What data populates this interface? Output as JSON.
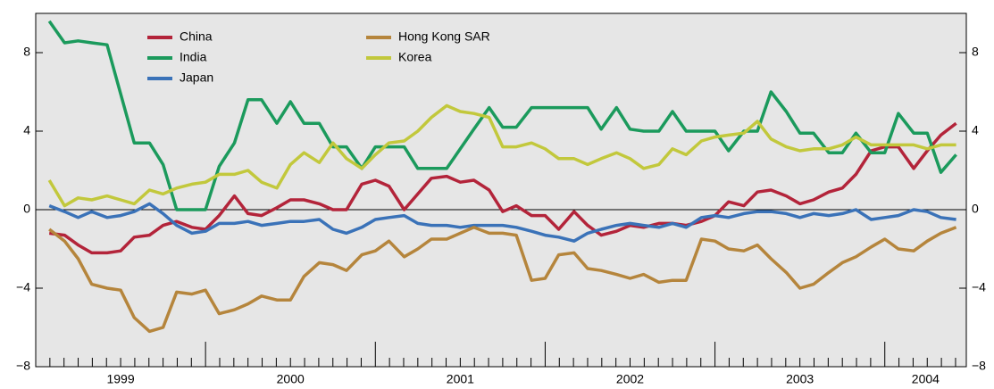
{
  "chart_data": {
    "type": "line",
    "x": [
      1999.08,
      1999.17,
      1999.25,
      1999.33,
      1999.42,
      1999.5,
      1999.58,
      1999.67,
      1999.75,
      1999.83,
      1999.92,
      2000.0,
      2000.08,
      2000.17,
      2000.25,
      2000.33,
      2000.42,
      2000.5,
      2000.58,
      2000.67,
      2000.75,
      2000.83,
      2000.92,
      2001.0,
      2001.08,
      2001.17,
      2001.25,
      2001.33,
      2001.42,
      2001.5,
      2001.58,
      2001.67,
      2001.75,
      2001.83,
      2001.92,
      2002.0,
      2002.08,
      2002.17,
      2002.25,
      2002.33,
      2002.42,
      2002.5,
      2002.58,
      2002.67,
      2002.75,
      2002.83,
      2002.92,
      2003.0,
      2003.08,
      2003.17,
      2003.25,
      2003.33,
      2003.42,
      2003.5,
      2003.58,
      2003.67,
      2003.75,
      2003.83,
      2003.92,
      2004.0,
      2004.08,
      2004.17,
      2004.25,
      2004.33,
      2004.42
    ],
    "series": [
      {
        "name": "China",
        "color": "#b3243a",
        "values": [
          -1.2,
          -1.3,
          -1.8,
          -2.2,
          -2.2,
          -2.1,
          -1.4,
          -1.3,
          -0.8,
          -0.6,
          -0.9,
          -1.0,
          -0.3,
          0.7,
          -0.2,
          -0.3,
          0.1,
          0.5,
          0.5,
          0.3,
          0,
          0,
          1.3,
          1.5,
          1.2,
          0,
          0.8,
          1.6,
          1.7,
          1.4,
          1.5,
          1.0,
          -0.1,
          0.2,
          -0.3,
          -0.3,
          -1.0,
          -0.1,
          -0.8,
          -1.3,
          -1.1,
          -0.8,
          -0.9,
          -0.7,
          -0.7,
          -0.8,
          -0.6,
          -0.3,
          0.4,
          0.2,
          0.9,
          1.0,
          0.7,
          0.3,
          0.5,
          0.9,
          1.1,
          1.8,
          3.0,
          3.2,
          3.2,
          2.1,
          3.0,
          3.8,
          4.4
        ]
      },
      {
        "name": "India",
        "color": "#1b9a5c",
        "values": [
          9.6,
          8.5,
          8.6,
          8.5,
          8.4,
          5.9,
          3.4,
          3.4,
          2.3,
          0,
          0,
          0,
          2.2,
          3.4,
          5.6,
          5.6,
          4.4,
          5.5,
          4.4,
          4.4,
          3.2,
          3.2,
          2.1,
          3.2,
          3.2,
          3.2,
          2.1,
          2.1,
          2.1,
          3.1,
          4.1,
          5.2,
          4.2,
          4.2,
          5.2,
          5.2,
          5.2,
          5.2,
          5.2,
          4.1,
          5.2,
          4.1,
          4.0,
          4.0,
          5.0,
          4.0,
          4.0,
          4.0,
          3.0,
          4.0,
          4.0,
          6.0,
          5.0,
          3.9,
          3.9,
          2.9,
          2.9,
          3.9,
          2.9,
          2.9,
          4.9,
          3.9,
          3.9,
          1.9,
          2.8
        ]
      },
      {
        "name": "Japan",
        "color": "#3a72b8",
        "values": [
          0.2,
          -0.1,
          -0.4,
          -0.1,
          -0.4,
          -0.3,
          -0.1,
          0.3,
          -0.2,
          -0.8,
          -1.2,
          -1.1,
          -0.7,
          -0.7,
          -0.6,
          -0.8,
          -0.7,
          -0.6,
          -0.6,
          -0.5,
          -1.0,
          -1.2,
          -0.9,
          -0.5,
          -0.4,
          -0.3,
          -0.7,
          -0.8,
          -0.8,
          -0.9,
          -0.8,
          -0.8,
          -0.8,
          -0.9,
          -1.1,
          -1.3,
          -1.4,
          -1.6,
          -1.2,
          -1.0,
          -0.8,
          -0.7,
          -0.8,
          -0.9,
          -0.7,
          -0.9,
          -0.4,
          -0.3,
          -0.4,
          -0.2,
          -0.1,
          -0.1,
          -0.2,
          -0.4,
          -0.2,
          -0.3,
          -0.2,
          0,
          -0.5,
          -0.4,
          -0.3,
          0,
          -0.1,
          -0.4,
          -0.5
        ]
      },
      {
        "name": "Hong Kong SAR",
        "color": "#b5853c",
        "values": [
          -1.0,
          -1.6,
          -2.5,
          -3.8,
          -4.0,
          -4.1,
          -5.5,
          -6.2,
          -6.0,
          -4.2,
          -4.3,
          -4.1,
          -5.3,
          -5.1,
          -4.8,
          -4.4,
          -4.6,
          -4.6,
          -3.4,
          -2.7,
          -2.8,
          -3.1,
          -2.3,
          -2.1,
          -1.6,
          -2.4,
          -2.0,
          -1.5,
          -1.5,
          -1.2,
          -0.9,
          -1.2,
          -1.2,
          -1.3,
          -3.6,
          -3.5,
          -2.3,
          -2.2,
          -3.0,
          -3.1,
          -3.3,
          -3.5,
          -3.3,
          -3.7,
          -3.6,
          -3.6,
          -1.5,
          -1.6,
          -2.0,
          -2.1,
          -1.8,
          -2.5,
          -3.2,
          -4.0,
          -3.8,
          -3.2,
          -2.7,
          -2.4,
          -1.9,
          -1.5,
          -2.0,
          -2.1,
          -1.6,
          -1.2,
          -0.9
        ]
      },
      {
        "name": "Korea",
        "color": "#c2c83c",
        "values": [
          1.5,
          0.2,
          0.6,
          0.5,
          0.7,
          0.5,
          0.3,
          1.0,
          0.8,
          1.1,
          1.3,
          1.4,
          1.8,
          1.8,
          2.0,
          1.4,
          1.1,
          2.3,
          2.9,
          2.4,
          3.4,
          2.6,
          2.1,
          2.8,
          3.4,
          3.5,
          4.0,
          4.7,
          5.3,
          5.0,
          4.9,
          4.7,
          3.2,
          3.2,
          3.4,
          3.1,
          2.6,
          2.6,
          2.3,
          2.6,
          2.9,
          2.6,
          2.1,
          2.3,
          3.1,
          2.8,
          3.5,
          3.7,
          3.8,
          3.9,
          4.5,
          3.6,
          3.2,
          3.0,
          3.1,
          3.1,
          3.3,
          3.7,
          3.3,
          3.3,
          3.3,
          3.3,
          3.1,
          3.3,
          3.3
        ]
      }
    ],
    "xlim": [
      1999.0,
      2004.48
    ],
    "xticks": [
      {
        "value": 1999.5,
        "label": "1999"
      },
      {
        "value": 2000.5,
        "label": "2000"
      },
      {
        "value": 2001.5,
        "label": "2001"
      },
      {
        "value": 2002.5,
        "label": "2002"
      },
      {
        "value": 2003.5,
        "label": "2003"
      },
      {
        "value": 2004.24,
        "label": "2004"
      }
    ],
    "ylim": [
      -8,
      10
    ],
    "yticks": [
      {
        "value": -8,
        "label": "−8"
      },
      {
        "value": -4,
        "label": "−4"
      },
      0,
      4,
      8
    ],
    "zero_line": true,
    "legend": "top-left"
  }
}
